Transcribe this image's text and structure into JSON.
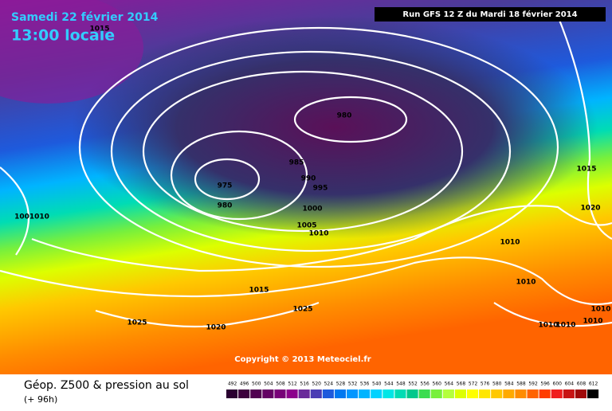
{
  "header": {
    "title": "Samedi 22 février 2014",
    "time": "13:00 locale",
    "run": "Run GFS 12 Z du Mardi 18 février 2014"
  },
  "isobar_labels": [
    "1015",
    "980",
    "975",
    "980",
    "985",
    "990",
    "995",
    "1000",
    "1005",
    "1010",
    "1015",
    "1020",
    "1010",
    "1010",
    "1010",
    "1001010",
    "1015",
    "1025",
    "1025",
    "1020",
    "1010",
    "1010",
    "1010"
  ],
  "copyright": "Copyright © 2013 Meteociel.fr",
  "footer": {
    "title": "Géop. Z500 & pression au sol",
    "lead": "(+ 96h)"
  },
  "legend": {
    "values": [
      492,
      496,
      500,
      504,
      508,
      512,
      516,
      520,
      524,
      528,
      532,
      536,
      540,
      544,
      548,
      552,
      556,
      560,
      564,
      568,
      572,
      576,
      580,
      584,
      588,
      592,
      596,
      600,
      604,
      608,
      612
    ],
    "colors": [
      "#2a0030",
      "#3c003c",
      "#500050",
      "#640064",
      "#780078",
      "#8c008c",
      "#6a2a9a",
      "#4a3cb4",
      "#1e5adc",
      "#0078f0",
      "#0096ff",
      "#00b4ff",
      "#00d2ff",
      "#00e6e6",
      "#00dcb4",
      "#00c88c",
      "#3cdc50",
      "#78f03c",
      "#b4ff3c",
      "#dcff00",
      "#ffff00",
      "#ffe600",
      "#ffc800",
      "#ffaa00",
      "#ff8c00",
      "#ff6400",
      "#ff3c00",
      "#f01e1e",
      "#c81414",
      "#a00a0a",
      "#000000"
    ]
  }
}
